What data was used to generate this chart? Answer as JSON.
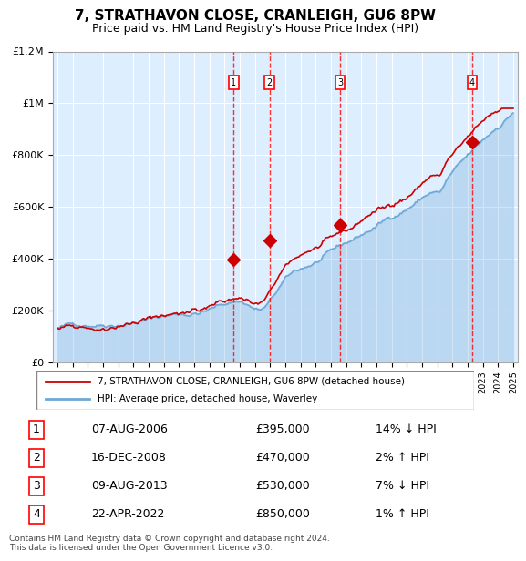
{
  "title": "7, STRATHAVON CLOSE, CRANLEIGH, GU6 8PW",
  "subtitle": "Price paid vs. HM Land Registry's House Price Index (HPI)",
  "x_start_year": 1995,
  "x_end_year": 2025,
  "y_min": 0,
  "y_max": 1200000,
  "y_ticks": [
    0,
    200000,
    400000,
    600000,
    800000,
    1000000,
    1200000
  ],
  "y_tick_labels": [
    "£0",
    "£200K",
    "£400K",
    "£600K",
    "£800K",
    "£1M",
    "£1.2M"
  ],
  "hpi_color": "#6fa8d4",
  "price_color": "#cc0000",
  "bg_color": "#ddeeff",
  "transactions": [
    {
      "label": "1",
      "year": 2006.6,
      "price": 395000,
      "note": "07-AUG-2006",
      "price_str": "£395,000",
      "pct": "14%",
      "dir": "↓"
    },
    {
      "label": "2",
      "year": 2008.95,
      "price": 470000,
      "note": "16-DEC-2008",
      "price_str": "£470,000",
      "pct": "2%",
      "dir": "↑"
    },
    {
      "label": "3",
      "year": 2013.6,
      "price": 530000,
      "note": "09-AUG-2013",
      "price_str": "£530,000",
      "pct": "7%",
      "dir": "↓"
    },
    {
      "label": "4",
      "year": 2022.3,
      "price": 850000,
      "note": "22-APR-2022",
      "price_str": "£850,000",
      "pct": "1%",
      "dir": "↑"
    }
  ],
  "legend_line1": "7, STRATHAVON CLOSE, CRANLEIGH, GU6 8PW (detached house)",
  "legend_line2": "HPI: Average price, detached house, Waverley",
  "footnote": "Contains HM Land Registry data © Crown copyright and database right 2024.\nThis data is licensed under the Open Government Licence v3.0."
}
